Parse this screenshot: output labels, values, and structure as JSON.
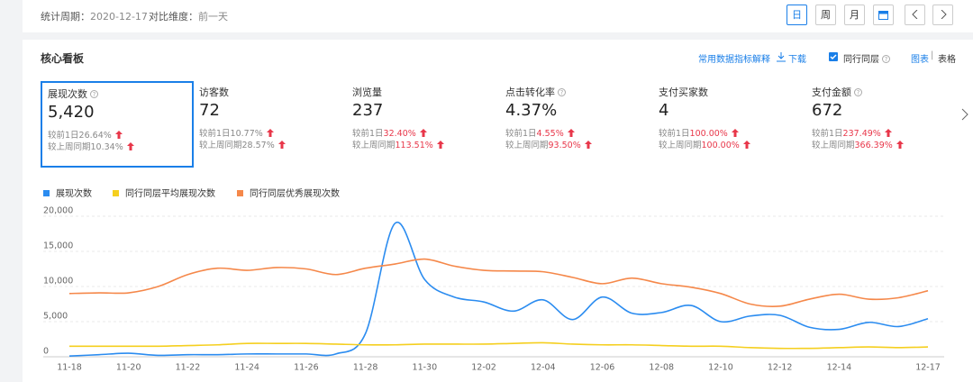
{
  "header": {
    "period_label": "统计周期：",
    "period": "2020-12-17",
    "compare_label": "对比维度：",
    "compare": "前一天",
    "buttons": [
      "日",
      "周",
      "月"
    ]
  },
  "panel": {
    "title": "核心看板",
    "glossary": "常用数据指标解释",
    "download": "下载",
    "peer_toggle": "同行同层",
    "view_chart": "图表",
    "view_table": "表格"
  },
  "kpis": [
    {
      "label": "展现次数",
      "value": "5,420",
      "day_label": "较前1日",
      "day": "26.64%",
      "week_label": "较上周同期",
      "week": "10.34%"
    },
    {
      "label": "访客数",
      "value": "72",
      "day_label": "较前1日",
      "day": "10.77%",
      "week_label": "较上周同期",
      "week": "28.57%"
    },
    {
      "label": "浏览量",
      "value": "237",
      "day_label": "较前1日",
      "day": "32.40%",
      "week_label": "较上周同期",
      "week": "113.51%"
    },
    {
      "label": "点击转化率",
      "value": "4.37%",
      "day_label": "较前1日",
      "day": "4.55%",
      "week_label": "较上周同期",
      "week": "93.50%"
    },
    {
      "label": "支付买家数",
      "value": "4",
      "day_label": "较前1日",
      "day": "100.00%",
      "week_label": "较上周同期",
      "week": "100.00%"
    },
    {
      "label": "支付金额",
      "value": "672",
      "day_label": "较前1日",
      "day": "237.49%",
      "week_label": "较上周同期",
      "week": "366.39%"
    }
  ],
  "chart_data": {
    "type": "line",
    "categories": [
      "11-18",
      null,
      "11-20",
      null,
      "11-22",
      null,
      "11-24",
      null,
      "11-26",
      null,
      "11-28",
      null,
      "11-30",
      null,
      "12-02",
      null,
      "12-04",
      null,
      "12-06",
      null,
      "12-08",
      null,
      "12-10",
      null,
      "12-12",
      null,
      "12-14",
      null,
      null,
      "12-17"
    ],
    "series": [
      {
        "name": "展现次数",
        "color": "#2b8cf0",
        "values": [
          100,
          300,
          500,
          200,
          300,
          300,
          400,
          400,
          400,
          400,
          3300,
          19000,
          11000,
          8500,
          7800,
          6500,
          8100,
          5300,
          8500,
          6200,
          6300,
          7300,
          5000,
          5800,
          5900,
          4200,
          3900,
          4900,
          4300,
          5420
        ]
      },
      {
        "name": "同行同层平均展现次数",
        "color": "#f5cf1f",
        "values": [
          1500,
          1500,
          1500,
          1500,
          1600,
          1700,
          1900,
          1900,
          1900,
          1800,
          1700,
          1700,
          1800,
          1800,
          1800,
          1900,
          2000,
          1800,
          1700,
          1700,
          1600,
          1500,
          1500,
          1300,
          1200,
          1200,
          1300,
          1400,
          1300,
          1400
        ]
      },
      {
        "name": "同行同层优秀展现次数",
        "color": "#f5884a",
        "values": [
          9000,
          9100,
          9100,
          10000,
          11700,
          12600,
          12300,
          12700,
          12500,
          11700,
          12600,
          13200,
          13900,
          12900,
          12300,
          12200,
          12100,
          11300,
          10400,
          11200,
          10400,
          9900,
          9000,
          7500,
          7200,
          8200,
          8900,
          8200,
          8400,
          9400
        ]
      }
    ],
    "ylim": [
      0,
      20000
    ],
    "yticks": [
      0,
      {
        "value": 5000,
        "label": "5,000"
      },
      {
        "value": 10000,
        "label": "10,000"
      },
      {
        "value": 15000,
        "label": "15,000"
      },
      {
        "value": 20000,
        "label": "20,000"
      }
    ],
    "grid": true,
    "smooth": true
  }
}
